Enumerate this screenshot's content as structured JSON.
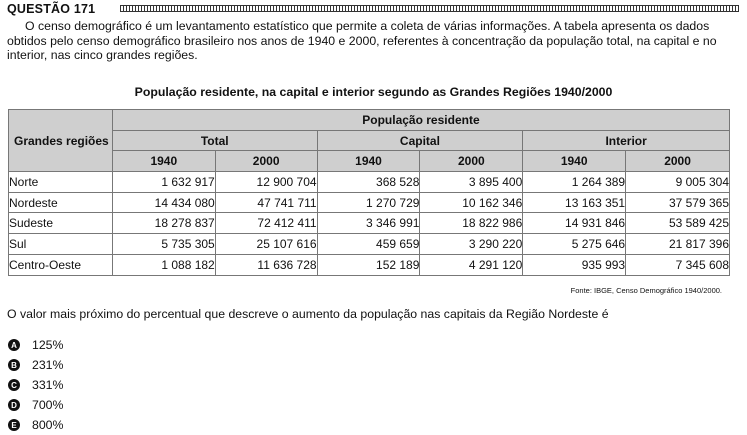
{
  "question": {
    "title": "QUESTÃO 171",
    "intro": "O censo demográfico é um levantamento estatístico que permite a coleta de várias informações. A tabela apresenta os dados obtidos pelo censo demográfico brasileiro nos anos de 1940 e 2000, referentes à concentração da população total, na capital e no interior, nas cinco grandes regiões.",
    "prompt": "O valor mais próximo do percentual que descreve o aumento da população nas capitais da Região Nordeste é"
  },
  "table": {
    "title": "População residente, na capital e interior segundo as Grandes Regiões 1940/2000",
    "corner_header": "Grandes regiões",
    "top_header": "População residente",
    "groups": [
      "Total",
      "Capital",
      "Interior"
    ],
    "years": [
      "1940",
      "2000"
    ],
    "rows": [
      {
        "region": "Norte",
        "values": [
          "1 632 917",
          "12 900 704",
          "368 528",
          "3 895 400",
          "1 264 389",
          "9 005 304"
        ]
      },
      {
        "region": "Nordeste",
        "values": [
          "14 434 080",
          "47 741 711",
          "1 270 729",
          "10 162 346",
          "13 163 351",
          "37 579 365"
        ]
      },
      {
        "region": "Sudeste",
        "values": [
          "18 278 837",
          "72 412 411",
          "3 346 991",
          "18 822 986",
          "14 931 846",
          "53 589 425"
        ]
      },
      {
        "region": "Sul",
        "values": [
          "5 735 305",
          "25 107 616",
          "459 659",
          "3 290 220",
          "5 275 646",
          "21 817 396"
        ]
      },
      {
        "region": "Centro-Oeste",
        "values": [
          "1 088 182",
          "11 636 728",
          "152 189",
          "4 291 120",
          "935 993",
          "7 345 608"
        ]
      }
    ],
    "source": "Fonte: IBGE, Censo Demográfico 1940/2000."
  },
  "options": [
    {
      "letter": "A",
      "text": "125%"
    },
    {
      "letter": "B",
      "text": "231%"
    },
    {
      "letter": "C",
      "text": "331%"
    },
    {
      "letter": "D",
      "text": "700%"
    },
    {
      "letter": "E",
      "text": "800%"
    }
  ]
}
